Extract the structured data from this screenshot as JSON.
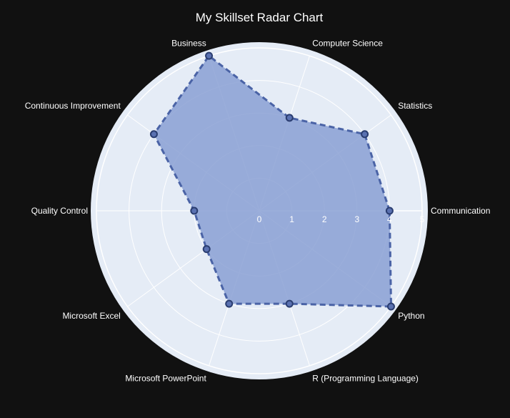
{
  "chart_data": {
    "type": "radar",
    "title": "My Skillset Radar Chart",
    "categories": [
      "Communication",
      "Statistics",
      "Computer Science",
      "Business",
      "Continuous Improvement",
      "Quality Control",
      "Microsoft Excel",
      "Microsoft PowerPoint",
      "R (Programming Language)",
      "Python"
    ],
    "values": [
      4,
      4,
      3,
      5,
      4,
      2,
      2,
      3,
      3,
      5
    ],
    "radial_range": [
      0,
      5
    ],
    "radial_ticks": [
      "0",
      "1",
      "2",
      "3",
      "4",
      "5"
    ],
    "grid": true,
    "colors": {
      "background": "#111111",
      "polar_background": "#e5ecf6",
      "grid": "#ffffff",
      "fill": "#8aa0d3",
      "line": "#4a63a6",
      "marker": "#5a71b1",
      "marker_outline": "#2a3d70"
    }
  }
}
